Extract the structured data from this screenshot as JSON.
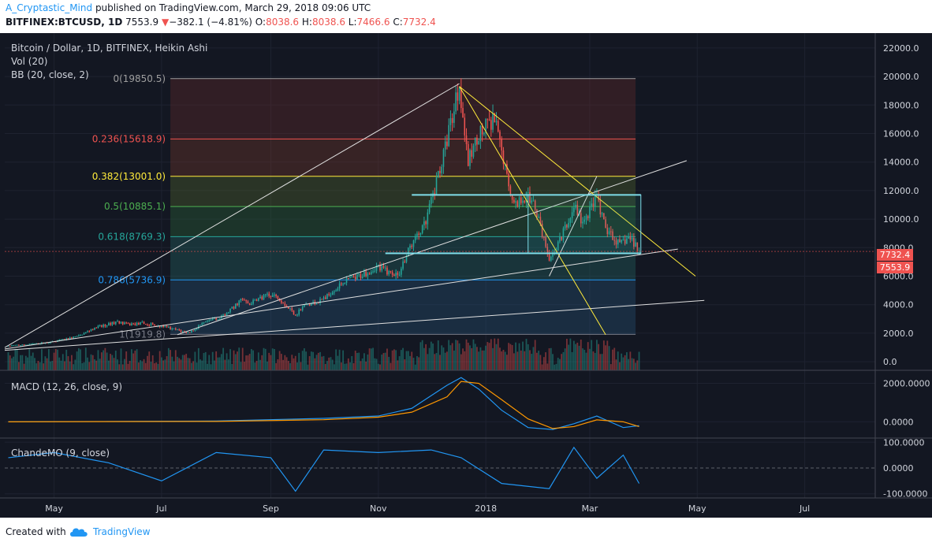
{
  "header": {
    "author": "A_Cryptastic_Mind",
    "published_text": "published on TradingView.com, March 29, 2018 09:06 UTC",
    "symbol": "BITFINEX:BTCUSD, 1D",
    "last": "7553.9",
    "change_arrow": "▼",
    "change": "−382.1 (−4.81%)",
    "open_label": "O:",
    "open": "8038.6",
    "high_label": "H:",
    "high": "8038.6",
    "low_label": "L:",
    "low": "7466.6",
    "close_label": "C:",
    "close": "7732.4"
  },
  "main_pane": {
    "title": "Bitcoin / Dollar, 1D, BITFINEX, Heikin Ashi",
    "indicator_vol": "Vol (20)",
    "indicator_bb": "BB (20, close, 2)",
    "price_tag_1": "7732.4",
    "price_tag_2": "7553.9"
  },
  "macd_pane": {
    "title": "MACD (12, 26, close, 9)"
  },
  "cmo_pane": {
    "title": "ChandeMO (9, close)"
  },
  "footer": {
    "created_with": "Created with",
    "brand": "TradingView"
  },
  "colors": {
    "background": "#131722",
    "up": "#26a69a",
    "down": "#ef5350",
    "cmo_line": "#2196f3"
  },
  "chart_data": [
    {
      "type": "candlestick",
      "pane": "price",
      "title": "Bitcoin / Dollar, 1D, BITFINEX, Heikin Ashi",
      "yaxis_ticks": [
        "0.0",
        "2000.0",
        "4000.0",
        "6000.0",
        "8000.0",
        "10000.0",
        "12000.0",
        "14000.0",
        "16000.0",
        "18000.0",
        "20000.0",
        "22000.0"
      ],
      "ylim": [
        -600,
        22600
      ],
      "xaxis_ticks": [
        "May",
        "Jul",
        "Sep",
        "Nov",
        "2018",
        "Mar",
        "May",
        "Jul"
      ],
      "xaxis_tick_dates": [
        "2017-05-01",
        "2017-07-01",
        "2017-09-01",
        "2017-11-01",
        "2018-01-01",
        "2018-03-01",
        "2018-05-01",
        "2018-07-01"
      ],
      "xlim": [
        "2017-04-03",
        "2018-08-10"
      ],
      "series": [
        {
          "role": "close",
          "dates": [
            "2017-04-05",
            "2017-04-20",
            "2017-05-01",
            "2017-05-15",
            "2017-05-25",
            "2017-06-06",
            "2017-06-12",
            "2017-06-20",
            "2017-07-01",
            "2017-07-16",
            "2017-07-25",
            "2017-08-05",
            "2017-08-15",
            "2017-08-20",
            "2017-08-31",
            "2017-09-05",
            "2017-09-15",
            "2017-09-20",
            "2017-09-30",
            "2017-10-12",
            "2017-10-20",
            "2017-11-01",
            "2017-11-12",
            "2017-11-18",
            "2017-11-28",
            "2017-12-07",
            "2017-12-17",
            "2017-12-22",
            "2017-12-28",
            "2018-01-06",
            "2018-01-10",
            "2018-01-17",
            "2018-01-22",
            "2018-01-28",
            "2018-02-02",
            "2018-02-06",
            "2018-02-12",
            "2018-02-20",
            "2018-02-25",
            "2018-03-05",
            "2018-03-10",
            "2018-03-18",
            "2018-03-24",
            "2018-03-29"
          ],
          "values": [
            1100,
            1250,
            1400,
            1800,
            2400,
            2800,
            2600,
            2700,
            2500,
            2000,
            2700,
            3200,
            4300,
            4100,
            4700,
            4500,
            3300,
            3900,
            4300,
            5600,
            5900,
            6600,
            6000,
            7800,
            9800,
            14000,
            19500,
            14000,
            16000,
            17000,
            14500,
            11000,
            11500,
            11500,
            9000,
            6900,
            8500,
            11000,
            9600,
            11500,
            9300,
            8200,
            8700,
            7732
          ],
          "approx": true
        }
      ],
      "annotations": {
        "fib_levels": [
          {
            "label": "0(19850.5)",
            "value": 19850.5
          },
          {
            "label": "0.236(15618.9)",
            "value": 15618.9
          },
          {
            "label": "0.382(13001.0)",
            "value": 13001.0
          },
          {
            "label": "0.5(10885.1)",
            "value": 10885.1
          },
          {
            "label": "0.618(8769.3)",
            "value": 8769.3
          },
          {
            "label": "0.786(5736.9)",
            "value": 5736.9
          },
          {
            "label": "1(1919.8)",
            "value": 1919.8
          }
        ]
      },
      "grid": true
    },
    {
      "type": "bar",
      "pane": "volume",
      "title": "Vol (20)",
      "note": "volume histogram at bottom of price pane, relative heights only (no axis printed)"
    },
    {
      "type": "line",
      "pane": "macd",
      "title": "MACD (12, 26, close, 9)",
      "yaxis_ticks": [
        "0.0000",
        "2000.0000"
      ],
      "ylim": [
        -600,
        2350
      ],
      "series": [
        {
          "role": "macd",
          "dates": [
            "2017-04-05",
            "2017-08-01",
            "2017-10-01",
            "2017-11-01",
            "2017-11-20",
            "2017-12-10",
            "2017-12-18",
            "2017-12-28",
            "2018-01-10",
            "2018-01-25",
            "2018-02-08",
            "2018-02-20",
            "2018-03-05",
            "2018-03-20",
            "2018-03-29"
          ],
          "values": [
            0,
            40,
            180,
            300,
            700,
            1900,
            2300,
            1700,
            600,
            -300,
            -400,
            -100,
            300,
            -300,
            -200
          ],
          "approx": true
        }
      ],
      "grid": true
    },
    {
      "type": "line",
      "pane": "cmo",
      "title": "ChandeMO (9, close)",
      "yaxis_ticks": [
        "-100.0000",
        "0.0000",
        "100.0000"
      ],
      "ylim": [
        -110,
        110
      ],
      "series": [
        {
          "role": "cmo",
          "dates": [
            "2017-04-05",
            "2017-05-01",
            "2017-06-01",
            "2017-07-01",
            "2017-08-01",
            "2017-09-01",
            "2017-09-15",
            "2017-10-01",
            "2017-11-01",
            "2017-12-01",
            "2017-12-18",
            "2018-01-10",
            "2018-02-06",
            "2018-02-20",
            "2018-03-05",
            "2018-03-20",
            "2018-03-29"
          ],
          "values": [
            40,
            60,
            20,
            -50,
            60,
            40,
            -90,
            70,
            60,
            70,
            40,
            -60,
            -80,
            80,
            -40,
            50,
            -60
          ],
          "approx": true
        }
      ],
      "grid": true
    }
  ]
}
